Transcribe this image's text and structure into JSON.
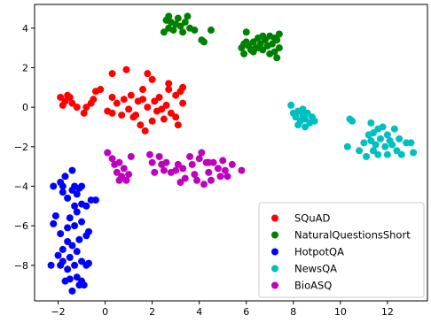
{
  "chart_data": {
    "type": "scatter",
    "title": "",
    "xlabel": "",
    "ylabel": "",
    "xlim": [
      -3.0,
      13.7
    ],
    "ylim": [
      -9.8,
      5.2
    ],
    "xticks": [
      -2,
      0,
      2,
      4,
      6,
      8,
      10,
      12
    ],
    "xtick_labels": [
      "−2",
      "0",
      "2",
      "4",
      "6",
      "8",
      "10",
      "12"
    ],
    "yticks": [
      4,
      2,
      0,
      -2,
      -4,
      -6,
      -8
    ],
    "ytick_labels": [
      "4",
      "2",
      "0",
      "−2",
      "−4",
      "−6",
      "−8"
    ],
    "grid": false,
    "legend_position": "lower-right",
    "series": [
      {
        "name": "SQuAD",
        "color": "#ff0000",
        "points": [
          [
            -1.9,
            0.5
          ],
          [
            -1.7,
            0.3
          ],
          [
            -1.5,
            0.5
          ],
          [
            -1.8,
            0.1
          ],
          [
            -1.6,
            0.6
          ],
          [
            -1.4,
            0.2
          ],
          [
            -1.2,
            0.0
          ],
          [
            -0.9,
            -0.3
          ],
          [
            -0.6,
            0.2
          ],
          [
            -0.8,
            0.0
          ],
          [
            -0.4,
            0.8
          ],
          [
            -0.2,
            0.9
          ],
          [
            0.1,
            -0.2
          ],
          [
            0.3,
            0.5
          ],
          [
            0.3,
            -0.3
          ],
          [
            0.5,
            0.2
          ],
          [
            0.7,
            -0.4
          ],
          [
            0.8,
            0.4
          ],
          [
            1.0,
            -0.1
          ],
          [
            1.1,
            0.6
          ],
          [
            1.2,
            -0.5
          ],
          [
            1.4,
            0.3
          ],
          [
            1.5,
            -0.9
          ],
          [
            1.6,
            0.4
          ],
          [
            1.7,
            -1.2
          ],
          [
            1.8,
            0.0
          ],
          [
            2.0,
            -0.7
          ],
          [
            2.1,
            0.3
          ],
          [
            2.2,
            -0.2
          ],
          [
            2.3,
            0.5
          ],
          [
            2.5,
            -0.6
          ],
          [
            2.6,
            0.1
          ],
          [
            2.7,
            0.9
          ],
          [
            2.8,
            -0.3
          ],
          [
            3.0,
            0.6
          ],
          [
            3.1,
            -0.9
          ],
          [
            3.2,
            0.8
          ],
          [
            3.3,
            0.2
          ],
          [
            3.0,
            -0.5
          ],
          [
            2.7,
            1.2
          ],
          [
            2.0,
            1.4
          ],
          [
            1.8,
            1.7
          ],
          [
            0.9,
            1.9
          ],
          [
            0.3,
            1.7
          ],
          [
            -0.5,
            0.4
          ],
          [
            1.6,
            0.9
          ],
          [
            2.4,
            -0.1
          ],
          [
            1.3,
            -0.4
          ],
          [
            3.3,
            1.0
          ]
        ]
      },
      {
        "name": "NaturalQuestionsShort",
        "color": "#008000",
        "points": [
          [
            2.6,
            4.4
          ],
          [
            2.7,
            4.0
          ],
          [
            2.8,
            4.3
          ],
          [
            2.9,
            3.9
          ],
          [
            3.0,
            4.2
          ],
          [
            3.1,
            4.5
          ],
          [
            3.2,
            4.1
          ],
          [
            3.3,
            3.8
          ],
          [
            3.4,
            4.3
          ],
          [
            3.6,
            4.0
          ],
          [
            3.8,
            3.9
          ],
          [
            2.5,
            3.8
          ],
          [
            2.7,
            4.6
          ],
          [
            3.5,
            4.6
          ],
          [
            4.1,
            3.4
          ],
          [
            4.2,
            3.3
          ],
          [
            4.5,
            3.9
          ],
          [
            5.8,
            3.0
          ],
          [
            5.9,
            2.7
          ],
          [
            6.0,
            3.3
          ],
          [
            6.1,
            3.1
          ],
          [
            6.2,
            2.9
          ],
          [
            6.3,
            3.3
          ],
          [
            6.4,
            3.0
          ],
          [
            6.5,
            3.5
          ],
          [
            6.6,
            3.2
          ],
          [
            6.7,
            2.9
          ],
          [
            6.8,
            3.4
          ],
          [
            6.9,
            3.1
          ],
          [
            7.0,
            3.6
          ],
          [
            7.1,
            3.2
          ],
          [
            7.2,
            2.8
          ],
          [
            7.3,
            3.4
          ],
          [
            7.4,
            3.0
          ],
          [
            7.3,
            2.5
          ],
          [
            7.4,
            3.7
          ],
          [
            6.0,
            3.8
          ],
          [
            6.7,
            3.6
          ],
          [
            5.9,
            3.2
          ],
          [
            6.3,
            2.8
          ],
          [
            7.0,
            2.7
          ],
          [
            6.5,
            3.0
          ],
          [
            7.2,
            3.5
          ]
        ]
      },
      {
        "name": "HotpotQA",
        "color": "#0000ff",
        "points": [
          [
            -2.2,
            -4.0
          ],
          [
            -1.9,
            -3.8
          ],
          [
            -1.8,
            -4.3
          ],
          [
            -1.7,
            -3.5
          ],
          [
            -1.6,
            -4.6
          ],
          [
            -1.4,
            -4.2
          ],
          [
            -1.3,
            -4.0
          ],
          [
            -1.2,
            -4.4
          ],
          [
            -1.1,
            -4.1
          ],
          [
            -1.0,
            -4.0
          ],
          [
            -1.4,
            -3.2
          ],
          [
            -1.8,
            -4.0
          ],
          [
            -1.0,
            -4.9
          ],
          [
            -0.8,
            -5.0
          ],
          [
            -0.6,
            -4.7
          ],
          [
            -0.4,
            -4.7
          ],
          [
            -1.3,
            -5.0
          ],
          [
            -1.5,
            -5.6
          ],
          [
            -1.2,
            -5.3
          ],
          [
            -2.1,
            -5.5
          ],
          [
            -2.2,
            -5.9
          ],
          [
            -1.9,
            -6.4
          ],
          [
            -1.6,
            -6.1
          ],
          [
            -1.3,
            -6.0
          ],
          [
            -1.0,
            -5.8
          ],
          [
            -0.8,
            -6.5
          ],
          [
            -0.7,
            -6.3
          ],
          [
            -1.1,
            -6.7
          ],
          [
            -1.4,
            -7.0
          ],
          [
            -1.8,
            -7.2
          ],
          [
            -2.0,
            -7.5
          ],
          [
            -1.5,
            -7.6
          ],
          [
            -1.2,
            -7.3
          ],
          [
            -1.0,
            -7.8
          ],
          [
            -0.8,
            -8.0
          ],
          [
            -0.7,
            -7.9
          ],
          [
            -1.3,
            -8.0
          ],
          [
            -1.6,
            -8.2
          ],
          [
            -1.9,
            -8.0
          ],
          [
            -2.3,
            -8.0
          ],
          [
            -1.5,
            -8.7
          ],
          [
            -1.2,
            -8.6
          ],
          [
            -1.0,
            -8.8
          ],
          [
            -0.9,
            -9.0
          ],
          [
            -1.4,
            -9.3
          ],
          [
            -1.7,
            -8.8
          ],
          [
            -1.1,
            -9.0
          ],
          [
            -1.8,
            -7.8
          ],
          [
            -1.6,
            -6.8
          ]
        ]
      },
      {
        "name": "NewsQA",
        "color": "#00bfbf",
        "points": [
          [
            7.9,
            0.1
          ],
          [
            8.0,
            -0.3
          ],
          [
            8.1,
            -0.5
          ],
          [
            8.2,
            -0.2
          ],
          [
            8.3,
            -0.7
          ],
          [
            8.4,
            -0.4
          ],
          [
            8.5,
            -0.6
          ],
          [
            8.6,
            -0.3
          ],
          [
            8.7,
            -0.8
          ],
          [
            8.8,
            -0.5
          ],
          [
            8.9,
            -0.7
          ],
          [
            8.2,
            -0.9
          ],
          [
            8.5,
            -1.0
          ],
          [
            8.4,
            -0.1
          ],
          [
            10.3,
            -2.0
          ],
          [
            10.4,
            -0.6
          ],
          [
            10.5,
            -0.7
          ],
          [
            10.8,
            -2.2
          ],
          [
            11.0,
            -1.8
          ],
          [
            11.1,
            -2.5
          ],
          [
            11.2,
            -1.4
          ],
          [
            11.3,
            -1.7
          ],
          [
            11.3,
            -0.8
          ],
          [
            11.4,
            -2.2
          ],
          [
            11.5,
            -1.9
          ],
          [
            11.6,
            -1.1
          ],
          [
            11.6,
            -2.4
          ],
          [
            11.7,
            -1.6
          ],
          [
            11.8,
            -1.0
          ],
          [
            11.9,
            -2.0
          ],
          [
            12.0,
            -2.4
          ],
          [
            12.1,
            -1.7
          ],
          [
            12.2,
            -1.9
          ],
          [
            12.3,
            -1.1
          ],
          [
            12.4,
            -2.2
          ],
          [
            12.5,
            -1.6
          ],
          [
            12.6,
            -2.4
          ],
          [
            12.8,
            -1.8
          ],
          [
            13.0,
            -1.8
          ],
          [
            13.1,
            -2.3
          ],
          [
            11.4,
            -1.3
          ],
          [
            12.0,
            -1.4
          ]
        ]
      },
      {
        "name": "BioASQ",
        "color": "#bf00bf",
        "points": [
          [
            0.1,
            -2.3
          ],
          [
            0.3,
            -2.6
          ],
          [
            0.4,
            -2.9
          ],
          [
            0.5,
            -3.3
          ],
          [
            0.6,
            -2.8
          ],
          [
            0.7,
            -3.5
          ],
          [
            0.8,
            -3.1
          ],
          [
            0.9,
            -3.7
          ],
          [
            1.0,
            -3.4
          ],
          [
            0.6,
            -3.7
          ],
          [
            1.1,
            -2.5
          ],
          [
            1.9,
            -2.4
          ],
          [
            2.0,
            -2.8
          ],
          [
            2.1,
            -3.3
          ],
          [
            2.3,
            -2.5
          ],
          [
            2.4,
            -2.9
          ],
          [
            2.5,
            -3.2
          ],
          [
            2.6,
            -2.8
          ],
          [
            3.0,
            -3.2
          ],
          [
            3.1,
            -2.9
          ],
          [
            3.3,
            -3.1
          ],
          [
            3.4,
            -3.6
          ],
          [
            3.6,
            -2.5
          ],
          [
            3.7,
            -2.9
          ],
          [
            3.8,
            -3.4
          ],
          [
            3.9,
            -3.7
          ],
          [
            4.0,
            -2.6
          ],
          [
            4.1,
            -2.3
          ],
          [
            4.3,
            -2.8
          ],
          [
            4.4,
            -3.3
          ],
          [
            4.5,
            -3.7
          ],
          [
            4.6,
            -2.8
          ],
          [
            4.8,
            -3.1
          ],
          [
            4.9,
            -3.5
          ],
          [
            5.0,
            -2.7
          ],
          [
            5.1,
            -3.2
          ],
          [
            5.2,
            -3.5
          ],
          [
            5.4,
            -2.9
          ],
          [
            5.8,
            -3.2
          ],
          [
            3.2,
            -3.8
          ],
          [
            2.8,
            -3.3
          ],
          [
            4.2,
            -3.9
          ],
          [
            4.4,
            -2.8
          ]
        ]
      }
    ]
  }
}
